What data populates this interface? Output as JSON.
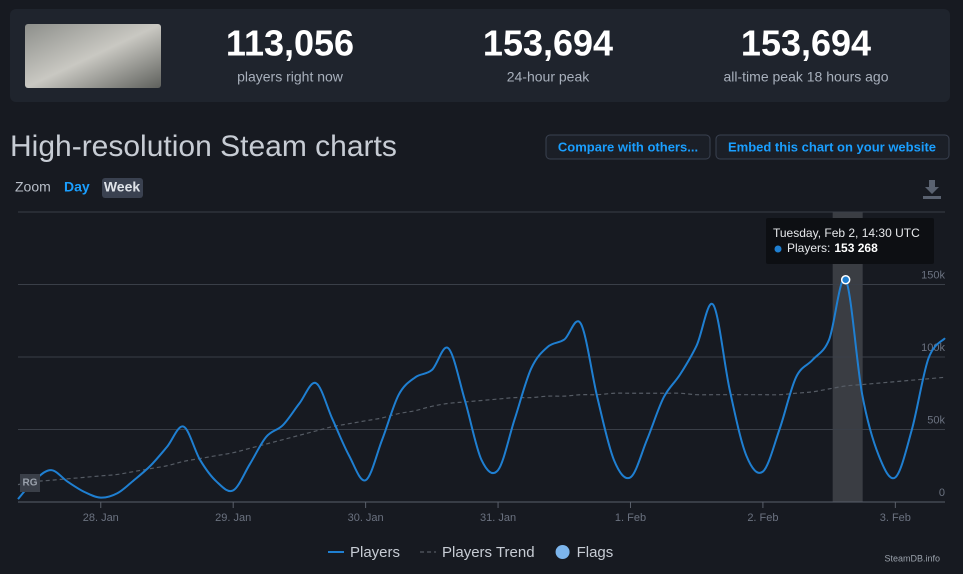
{
  "header": {
    "stats": [
      {
        "value": "113,056",
        "label": "players right now"
      },
      {
        "value": "153,694",
        "label": "24-hour peak"
      },
      {
        "value": "153,694",
        "label": "all-time peak 18 hours ago"
      }
    ]
  },
  "section": {
    "title": "High-resolution Steam charts",
    "buttons": [
      "Compare with others...",
      "Embed this chart on your website"
    ],
    "zoom_label": "Zoom",
    "zoom_options": [
      "Day",
      "Week"
    ]
  },
  "chart_data": {
    "type": "line",
    "categories": [
      null,
      null,
      null,
      null,
      null,
      "28. Jan",
      null,
      null,
      null,
      null,
      null,
      null,
      null,
      "29. Jan",
      null,
      null,
      null,
      null,
      null,
      null,
      null,
      "30. Jan",
      null,
      null,
      null,
      null,
      null,
      null,
      null,
      "31. Jan",
      null,
      null,
      null,
      null,
      null,
      null,
      null,
      "1. Feb",
      null,
      null,
      null,
      null,
      null,
      null,
      null,
      "2. Feb",
      null,
      null,
      null,
      null,
      null,
      null,
      null,
      "3. Feb",
      null,
      null,
      null
    ],
    "series": [
      {
        "name": "Players",
        "color": "#1f7fd1",
        "values": [
          2000,
          15000,
          22000,
          14000,
          7000,
          3000,
          6000,
          15000,
          25000,
          38000,
          52000,
          29000,
          14000,
          8000,
          26000,
          45000,
          53000,
          68000,
          82000,
          57000,
          32000,
          15000,
          43000,
          74000,
          86000,
          91000,
          106000,
          70000,
          29000,
          22000,
          57000,
          92000,
          107000,
          112000,
          123000,
          72000,
          29000,
          17000,
          43000,
          72000,
          88000,
          108000,
          136000,
          77000,
          32000,
          21000,
          50000,
          86000,
          98000,
          112000,
          153268,
          74000,
          32000,
          17000,
          50000,
          99000,
          113056
        ]
      },
      {
        "name": "Players Trend",
        "color": "#555b64",
        "dashed": true,
        "values": [
          12000,
          14000,
          15000,
          16000,
          17000,
          18000,
          19000,
          21000,
          23000,
          25000,
          28000,
          30000,
          32000,
          34000,
          37000,
          40000,
          43000,
          46000,
          49000,
          52000,
          54000,
          56000,
          58000,
          61000,
          63000,
          66000,
          68000,
          69000,
          70000,
          71000,
          72000,
          72000,
          73000,
          73000,
          74000,
          74000,
          75000,
          75000,
          75000,
          75000,
          75000,
          74000,
          74000,
          74000,
          74000,
          74000,
          74000,
          75000,
          76000,
          78000,
          80000,
          81000,
          82000,
          83000,
          84000,
          85000,
          86000
        ]
      }
    ],
    "flags": {
      "name": "Flags",
      "color": "#7cb5ec"
    },
    "ylim": [
      0,
      200000
    ],
    "yticks": [
      0,
      {
        "value": 50000,
        "label": "50k"
      },
      {
        "value": 100000,
        "label": "100k"
      },
      {
        "value": 150000,
        "label": "150k"
      }
    ],
    "grid": true,
    "tooltip": {
      "title": "Tuesday, Feb 2, 14:30 UTC",
      "label": "Players:",
      "value": "153 268"
    },
    "annotation": "RG",
    "credit": "SteamDB.info"
  }
}
